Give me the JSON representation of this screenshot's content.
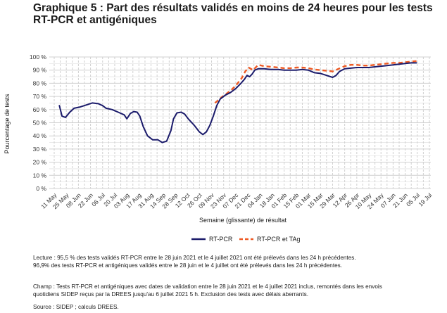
{
  "title": "Graphique 5 : Part des résultats validés en moins de 24 heures pour les tests RT-PCR et antigéniques",
  "chart_data": {
    "type": "line",
    "xlabel": "Semaine (glissante) de résultat",
    "ylabel": "Pourcentage de tests",
    "x_tick_labels": [
      "11 May",
      "25 May",
      "08 Jun",
      "22 Jun",
      "06 Jul",
      "20 Jul",
      "03 Aug",
      "17 Aug",
      "31 Aug",
      "14 Sep",
      "28 Sep",
      "12 Oct",
      "26 Oct",
      "09 Nov",
      "23 Nov",
      "07 Dec",
      "21 Dec",
      "04 Jan",
      "18 Jan",
      "01 Feb",
      "15 Feb",
      "01 Mar",
      "15 Mar",
      "29 Mar",
      "12 Apr",
      "26 Apr",
      "10 May",
      "24 May",
      "07 Jun",
      "21 Jun",
      "05 Jul",
      "19 Jul"
    ],
    "y_tick_labels": [
      "0 %",
      "10 %",
      "20 %",
      "30 %",
      "40 %",
      "50 %",
      "60 %",
      "70 %",
      "80 %",
      "90 %",
      "100 %"
    ],
    "ylim": [
      0,
      100
    ],
    "grid": true,
    "legend_position": "bottom",
    "series": [
      {
        "name": "RT-PCR",
        "color": "#1b1b6b",
        "style": "solid",
        "points": [
          [
            "2020-05-17",
            63
          ],
          [
            "2020-05-20",
            55
          ],
          [
            "2020-05-24",
            54
          ],
          [
            "2020-05-29",
            58
          ],
          [
            "2020-06-03",
            61
          ],
          [
            "2020-06-10",
            62
          ],
          [
            "2020-06-17",
            63.5
          ],
          [
            "2020-06-24",
            65
          ],
          [
            "2020-07-01",
            64.5
          ],
          [
            "2020-07-06",
            63
          ],
          [
            "2020-07-10",
            61
          ],
          [
            "2020-07-17",
            60
          ],
          [
            "2020-07-24",
            58
          ],
          [
            "2020-07-31",
            56
          ],
          [
            "2020-08-03",
            53
          ],
          [
            "2020-08-07",
            57
          ],
          [
            "2020-08-11",
            58.5
          ],
          [
            "2020-08-15",
            58
          ],
          [
            "2020-08-18",
            55
          ],
          [
            "2020-08-22",
            47
          ],
          [
            "2020-08-27",
            40
          ],
          [
            "2020-09-02",
            37
          ],
          [
            "2020-09-08",
            37
          ],
          [
            "2020-09-13",
            35
          ],
          [
            "2020-09-18",
            36
          ],
          [
            "2020-09-23",
            44
          ],
          [
            "2020-09-26",
            53
          ],
          [
            "2020-09-30",
            57.5
          ],
          [
            "2020-10-05",
            58
          ],
          [
            "2020-10-09",
            56.5
          ],
          [
            "2020-10-13",
            53
          ],
          [
            "2020-10-20",
            48
          ],
          [
            "2020-10-26",
            43
          ],
          [
            "2020-10-30",
            41
          ],
          [
            "2020-11-03",
            43
          ],
          [
            "2020-11-07",
            48
          ],
          [
            "2020-11-11",
            55
          ],
          [
            "2020-11-15",
            63
          ],
          [
            "2020-11-19",
            68
          ],
          [
            "2020-11-25",
            71
          ],
          [
            "2020-12-01",
            73
          ],
          [
            "2020-12-07",
            76
          ],
          [
            "2020-12-13",
            80
          ],
          [
            "2020-12-17",
            83
          ],
          [
            "2020-12-20",
            86
          ],
          [
            "2020-12-23",
            85
          ],
          [
            "2020-12-26",
            87
          ],
          [
            "2020-12-29",
            90
          ],
          [
            "2021-01-02",
            91
          ],
          [
            "2021-01-09",
            91
          ],
          [
            "2021-01-17",
            90.5
          ],
          [
            "2021-01-25",
            90.5
          ],
          [
            "2021-02-01",
            90
          ],
          [
            "2021-02-08",
            90
          ],
          [
            "2021-02-15",
            90
          ],
          [
            "2021-02-22",
            90.5
          ],
          [
            "2021-03-01",
            90
          ],
          [
            "2021-03-08",
            88
          ],
          [
            "2021-03-15",
            87.5
          ],
          [
            "2021-03-22",
            86
          ],
          [
            "2021-03-29",
            84.5
          ],
          [
            "2021-04-02",
            86
          ],
          [
            "2021-04-06",
            89
          ],
          [
            "2021-04-12",
            91
          ],
          [
            "2021-04-19",
            91.5
          ],
          [
            "2021-04-26",
            92
          ],
          [
            "2021-05-03",
            92
          ],
          [
            "2021-05-10",
            92
          ],
          [
            "2021-05-17",
            92.5
          ],
          [
            "2021-05-24",
            93
          ],
          [
            "2021-05-31",
            93.5
          ],
          [
            "2021-06-07",
            94
          ],
          [
            "2021-06-14",
            94.5
          ],
          [
            "2021-06-21",
            95
          ],
          [
            "2021-06-28",
            95.5
          ],
          [
            "2021-07-04",
            95.5
          ]
        ]
      },
      {
        "name": "RT-PCR et TAg",
        "color": "#ee5a24",
        "style": "dashed",
        "points": [
          [
            "2020-11-13",
            65
          ],
          [
            "2020-11-20",
            69
          ],
          [
            "2020-11-26",
            72
          ],
          [
            "2020-12-02",
            75
          ],
          [
            "2020-12-08",
            79
          ],
          [
            "2020-12-14",
            84
          ],
          [
            "2020-12-18",
            89
          ],
          [
            "2020-12-22",
            92
          ],
          [
            "2020-12-27",
            90
          ],
          [
            "2021-01-02",
            94
          ],
          [
            "2021-01-09",
            93
          ],
          [
            "2021-01-17",
            92.5
          ],
          [
            "2021-01-25",
            92
          ],
          [
            "2021-02-01",
            91.5
          ],
          [
            "2021-02-08",
            91.5
          ],
          [
            "2021-02-15",
            92
          ],
          [
            "2021-02-22",
            92
          ],
          [
            "2021-03-01",
            91.5
          ],
          [
            "2021-03-08",
            90.5
          ],
          [
            "2021-03-15",
            90
          ],
          [
            "2021-03-22",
            89.5
          ],
          [
            "2021-03-29",
            89
          ],
          [
            "2021-04-05",
            91
          ],
          [
            "2021-04-12",
            93
          ],
          [
            "2021-04-19",
            94
          ],
          [
            "2021-04-26",
            94
          ],
          [
            "2021-05-03",
            93.5
          ],
          [
            "2021-05-10",
            93.5
          ],
          [
            "2021-05-17",
            94
          ],
          [
            "2021-05-24",
            94.5
          ],
          [
            "2021-05-31",
            95
          ],
          [
            "2021-06-07",
            95.5
          ],
          [
            "2021-06-14",
            95.5
          ],
          [
            "2021-06-21",
            96
          ],
          [
            "2021-06-28",
            96.5
          ],
          [
            "2021-07-04",
            96.9
          ]
        ]
      }
    ]
  },
  "notes": {
    "lecture_1": "Lecture : 95,5 % des tests validés RT-PCR entre le 28 juin 2021 et le 4 juillet 2021 ont été prélevés dans les 24 h précédentes.",
    "lecture_2": "96,9% des tests RT-PCR et antigéniques validés entre le 28 juin et le 4 juillet ont été prélevés dans les 24 h précédentes.",
    "champ_1": "Champ : Tests RT-PCR et antigéniques avec dates de validation entre le 28 juin 2021 et le 4 juillet 2021 inclus, remontés dans les envois",
    "champ_2": "quotidiens SIDEP reçus par la DREES jusqu'au 6 juillet 2021 5 h. Exclusion des tests avec délais aberrants.",
    "source": "Source : SIDEP ; calculs DREES."
  }
}
